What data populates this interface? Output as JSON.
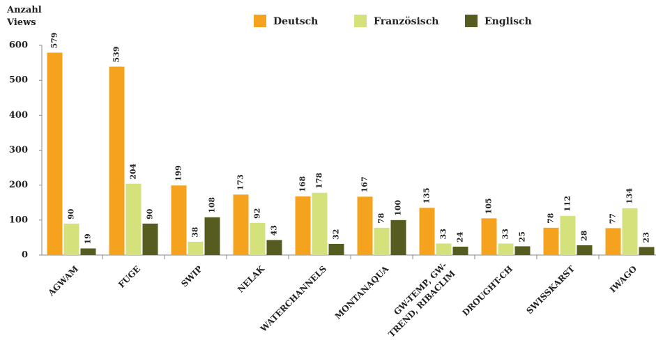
{
  "chart_data": {
    "type": "bar",
    "y_label": "Anzahl Views",
    "categories": [
      "AGWAM",
      "FUGE",
      "SWIP",
      "NELAK",
      "WATERCHANNELS",
      "MONTANAQUA",
      "GW-TEMP, GW-TREND, RIBACLIM",
      "DROUGHT-CH",
      "SWISSKARST",
      "IWAGO"
    ],
    "series": [
      {
        "name": "Deutsch",
        "color": "#f5a31f",
        "values": [
          579,
          539,
          199,
          173,
          168,
          167,
          135,
          105,
          78,
          77
        ]
      },
      {
        "name": "Französisch",
        "color": "#d5e27b",
        "values": [
          90,
          204,
          38,
          92,
          178,
          78,
          33,
          33,
          112,
          134
        ]
      },
      {
        "name": "Englisch",
        "color": "#565b1f",
        "values": [
          19,
          90,
          108,
          43,
          32,
          100,
          24,
          25,
          28,
          23
        ]
      }
    ],
    "ylim": [
      0,
      600
    ],
    "yticks": [
      0,
      100,
      200,
      300,
      400,
      500,
      600
    ],
    "grid": false,
    "legend": "top"
  }
}
